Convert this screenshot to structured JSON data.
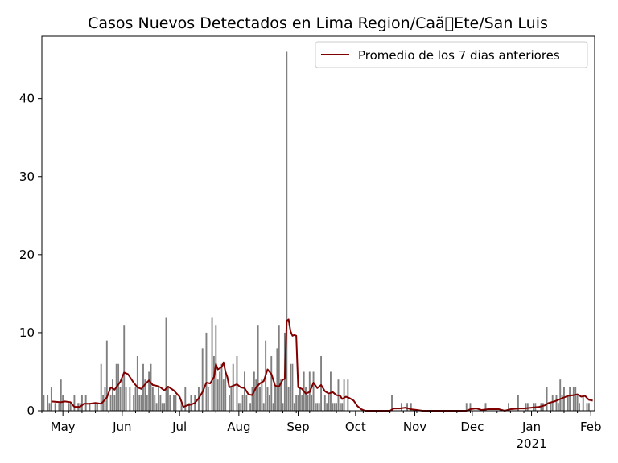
{
  "chart_data": {
    "type": "bar",
    "title": "Casos Nuevos Detectados en Lima Region/Caã\u0000Ete/San Luis",
    "xlabel": "",
    "ylabel": "",
    "ylim": [
      0,
      48
    ],
    "y_ticks": [
      0,
      10,
      20,
      30,
      40
    ],
    "x_ticks": [
      {
        "date": "2020-05-01",
        "label": "May",
        "sublabel": ""
      },
      {
        "date": "2020-06-01",
        "label": "Jun",
        "sublabel": ""
      },
      {
        "date": "2020-07-01",
        "label": "Jul",
        "sublabel": ""
      },
      {
        "date": "2020-08-01",
        "label": "Aug",
        "sublabel": ""
      },
      {
        "date": "2020-09-01",
        "label": "Sep",
        "sublabel": ""
      },
      {
        "date": "2020-10-01",
        "label": "Oct",
        "sublabel": ""
      },
      {
        "date": "2020-11-01",
        "label": "Nov",
        "sublabel": ""
      },
      {
        "date": "2020-12-01",
        "label": "Dec",
        "sublabel": ""
      },
      {
        "date": "2021-01-01",
        "label": "Jan",
        "sublabel": "2021"
      },
      {
        "date": "2021-02-01",
        "label": "Feb",
        "sublabel": ""
      }
    ],
    "x_range": [
      "2020-04-20",
      "2021-02-03"
    ],
    "legend": {
      "placement": "upper right",
      "line_label": "Promedio de los 7 dias anteriores"
    },
    "grid": false,
    "colors": {
      "bars": "#808080",
      "line": "#800000"
    },
    "series": [
      {
        "type": "bar",
        "points": [
          [
            "2020-04-21",
            2
          ],
          [
            "2020-04-23",
            2
          ],
          [
            "2020-04-24",
            1
          ],
          [
            "2020-04-25",
            3
          ],
          [
            "2020-04-27",
            1
          ],
          [
            "2020-04-29",
            1
          ],
          [
            "2020-04-30",
            4
          ],
          [
            "2020-05-01",
            2
          ],
          [
            "2020-05-04",
            1
          ],
          [
            "2020-05-05",
            1
          ],
          [
            "2020-05-07",
            2
          ],
          [
            "2020-05-09",
            1
          ],
          [
            "2020-05-10",
            1
          ],
          [
            "2020-05-11",
            2
          ],
          [
            "2020-05-13",
            2
          ],
          [
            "2020-05-15",
            1
          ],
          [
            "2020-05-18",
            1
          ],
          [
            "2020-05-19",
            1
          ],
          [
            "2020-05-21",
            6
          ],
          [
            "2020-05-22",
            2
          ],
          [
            "2020-05-23",
            3
          ],
          [
            "2020-05-24",
            9
          ],
          [
            "2020-05-26",
            2
          ],
          [
            "2020-05-27",
            4
          ],
          [
            "2020-05-28",
            2
          ],
          [
            "2020-05-29",
            6
          ],
          [
            "2020-05-30",
            6
          ],
          [
            "2020-05-31",
            3
          ],
          [
            "2020-06-01",
            4
          ],
          [
            "2020-06-02",
            11
          ],
          [
            "2020-06-03",
            3
          ],
          [
            "2020-06-05",
            3
          ],
          [
            "2020-06-07",
            2
          ],
          [
            "2020-06-08",
            3
          ],
          [
            "2020-06-09",
            7
          ],
          [
            "2020-06-10",
            2
          ],
          [
            "2020-06-11",
            2
          ],
          [
            "2020-06-12",
            6
          ],
          [
            "2020-06-13",
            4
          ],
          [
            "2020-06-14",
            2
          ],
          [
            "2020-06-15",
            5
          ],
          [
            "2020-06-16",
            6
          ],
          [
            "2020-06-17",
            3
          ],
          [
            "2020-06-18",
            2
          ],
          [
            "2020-06-19",
            1
          ],
          [
            "2020-06-20",
            3
          ],
          [
            "2020-06-21",
            2
          ],
          [
            "2020-06-22",
            1
          ],
          [
            "2020-06-23",
            1
          ],
          [
            "2020-06-24",
            12
          ],
          [
            "2020-06-25",
            3
          ],
          [
            "2020-06-26",
            2
          ],
          [
            "2020-06-28",
            2
          ],
          [
            "2020-06-29",
            2
          ],
          [
            "2020-07-02",
            1
          ],
          [
            "2020-07-04",
            3
          ],
          [
            "2020-07-06",
            1
          ],
          [
            "2020-07-07",
            2
          ],
          [
            "2020-07-09",
            2
          ],
          [
            "2020-07-11",
            3
          ],
          [
            "2020-07-13",
            8
          ],
          [
            "2020-07-15",
            10
          ],
          [
            "2020-07-16",
            3
          ],
          [
            "2020-07-18",
            12
          ],
          [
            "2020-07-19",
            7
          ],
          [
            "2020-07-20",
            11
          ],
          [
            "2020-07-21",
            4
          ],
          [
            "2020-07-22",
            5
          ],
          [
            "2020-07-23",
            6
          ],
          [
            "2020-07-24",
            4
          ],
          [
            "2020-07-25",
            5
          ],
          [
            "2020-07-27",
            2
          ],
          [
            "2020-07-28",
            3
          ],
          [
            "2020-07-29",
            6
          ],
          [
            "2020-07-31",
            7
          ],
          [
            "2020-08-01",
            1
          ],
          [
            "2020-08-02",
            1
          ],
          [
            "2020-08-03",
            2
          ],
          [
            "2020-08-04",
            5
          ],
          [
            "2020-08-05",
            2
          ],
          [
            "2020-08-07",
            1
          ],
          [
            "2020-08-08",
            3
          ],
          [
            "2020-08-09",
            5
          ],
          [
            "2020-08-10",
            4
          ],
          [
            "2020-08-11",
            11
          ],
          [
            "2020-08-12",
            3
          ],
          [
            "2020-08-13",
            4
          ],
          [
            "2020-08-14",
            1
          ],
          [
            "2020-08-15",
            9
          ],
          [
            "2020-08-16",
            3
          ],
          [
            "2020-08-17",
            2
          ],
          [
            "2020-08-18",
            7
          ],
          [
            "2020-08-19",
            1
          ],
          [
            "2020-08-20",
            3
          ],
          [
            "2020-08-21",
            8
          ],
          [
            "2020-08-22",
            11
          ],
          [
            "2020-08-23",
            4
          ],
          [
            "2020-08-24",
            1
          ],
          [
            "2020-08-25",
            10
          ],
          [
            "2020-08-26",
            46
          ],
          [
            "2020-08-27",
            3
          ],
          [
            "2020-08-28",
            6
          ],
          [
            "2020-08-29",
            6
          ],
          [
            "2020-08-30",
            1
          ],
          [
            "2020-08-31",
            2
          ],
          [
            "2020-09-01",
            2
          ],
          [
            "2020-09-02",
            3
          ],
          [
            "2020-09-03",
            2
          ],
          [
            "2020-09-04",
            5
          ],
          [
            "2020-09-05",
            3
          ],
          [
            "2020-09-06",
            2
          ],
          [
            "2020-09-07",
            5
          ],
          [
            "2020-09-08",
            2
          ],
          [
            "2020-09-09",
            5
          ],
          [
            "2020-09-10",
            1
          ],
          [
            "2020-09-11",
            1
          ],
          [
            "2020-09-12",
            1
          ],
          [
            "2020-09-13",
            7
          ],
          [
            "2020-09-15",
            2
          ],
          [
            "2020-09-16",
            1
          ],
          [
            "2020-09-17",
            2
          ],
          [
            "2020-09-18",
            5
          ],
          [
            "2020-09-19",
            1
          ],
          [
            "2020-09-20",
            1
          ],
          [
            "2020-09-21",
            1
          ],
          [
            "2020-09-22",
            4
          ],
          [
            "2020-09-23",
            1
          ],
          [
            "2020-09-24",
            1
          ],
          [
            "2020-09-25",
            4
          ],
          [
            "2020-09-27",
            4
          ],
          [
            "2020-10-20",
            2
          ],
          [
            "2020-10-25",
            1
          ],
          [
            "2020-10-28",
            1
          ],
          [
            "2020-10-30",
            1
          ],
          [
            "2020-11-28",
            1
          ],
          [
            "2020-11-30",
            1
          ],
          [
            "2020-12-08",
            1
          ],
          [
            "2020-12-20",
            1
          ],
          [
            "2020-12-25",
            2
          ],
          [
            "2020-12-29",
            1
          ],
          [
            "2020-12-30",
            1
          ],
          [
            "2021-01-02",
            1
          ],
          [
            "2021-01-03",
            1
          ],
          [
            "2021-01-06",
            1
          ],
          [
            "2021-01-07",
            1
          ],
          [
            "2021-01-09",
            3
          ],
          [
            "2021-01-11",
            1
          ],
          [
            "2021-01-12",
            2
          ],
          [
            "2021-01-14",
            2
          ],
          [
            "2021-01-15",
            1
          ],
          [
            "2021-01-16",
            4
          ],
          [
            "2021-01-17",
            2
          ],
          [
            "2021-01-18",
            3
          ],
          [
            "2021-01-20",
            2
          ],
          [
            "2021-01-21",
            3
          ],
          [
            "2021-01-23",
            3
          ],
          [
            "2021-01-24",
            3
          ],
          [
            "2021-01-25",
            2
          ],
          [
            "2021-01-26",
            1
          ],
          [
            "2021-01-28",
            2
          ],
          [
            "2021-01-30",
            1
          ],
          [
            "2021-01-31",
            1
          ]
        ]
      },
      {
        "name": "Promedio de los 7 dias anteriores",
        "type": "line",
        "points": [
          [
            "2020-04-25",
            1.2
          ],
          [
            "2020-04-30",
            1.1
          ],
          [
            "2020-05-02",
            1.2
          ],
          [
            "2020-05-05",
            1.1
          ],
          [
            "2020-05-07",
            0.5
          ],
          [
            "2020-05-10",
            0.5
          ],
          [
            "2020-05-12",
            0.9
          ],
          [
            "2020-05-15",
            0.9
          ],
          [
            "2020-05-18",
            1.0
          ],
          [
            "2020-05-21",
            0.9
          ],
          [
            "2020-05-24",
            1.7
          ],
          [
            "2020-05-26",
            3.0
          ],
          [
            "2020-05-28",
            2.7
          ],
          [
            "2020-05-31",
            3.7
          ],
          [
            "2020-06-02",
            4.9
          ],
          [
            "2020-06-04",
            4.7
          ],
          [
            "2020-06-07",
            3.6
          ],
          [
            "2020-06-09",
            3.0
          ],
          [
            "2020-06-11",
            2.8
          ],
          [
            "2020-06-13",
            3.4
          ],
          [
            "2020-06-15",
            3.9
          ],
          [
            "2020-06-17",
            3.3
          ],
          [
            "2020-06-19",
            3.2
          ],
          [
            "2020-06-21",
            3.0
          ],
          [
            "2020-06-23",
            2.6
          ],
          [
            "2020-06-25",
            3.1
          ],
          [
            "2020-06-28",
            2.6
          ],
          [
            "2020-07-01",
            1.8
          ],
          [
            "2020-07-03",
            0.5
          ],
          [
            "2020-07-05",
            0.7
          ],
          [
            "2020-07-07",
            0.8
          ],
          [
            "2020-07-09",
            1.0
          ],
          [
            "2020-07-11",
            1.6
          ],
          [
            "2020-07-13",
            2.4
          ],
          [
            "2020-07-15",
            3.6
          ],
          [
            "2020-07-17",
            3.5
          ],
          [
            "2020-07-19",
            4.3
          ],
          [
            "2020-07-20",
            6.0
          ],
          [
            "2020-07-21",
            5.3
          ],
          [
            "2020-07-23",
            5.6
          ],
          [
            "2020-07-24",
            6.2
          ],
          [
            "2020-07-25",
            5.0
          ],
          [
            "2020-07-26",
            4.3
          ],
          [
            "2020-07-27",
            3.0
          ],
          [
            "2020-07-29",
            3.2
          ],
          [
            "2020-07-31",
            3.4
          ],
          [
            "2020-08-02",
            3.0
          ],
          [
            "2020-08-04",
            2.9
          ],
          [
            "2020-08-06",
            2.1
          ],
          [
            "2020-08-08",
            2.0
          ],
          [
            "2020-08-10",
            3.0
          ],
          [
            "2020-08-12",
            3.5
          ],
          [
            "2020-08-14",
            3.8
          ],
          [
            "2020-08-16",
            5.3
          ],
          [
            "2020-08-18",
            4.7
          ],
          [
            "2020-08-20",
            3.2
          ],
          [
            "2020-08-22",
            3.1
          ],
          [
            "2020-08-24",
            4.0
          ],
          [
            "2020-08-25",
            4.1
          ],
          [
            "2020-08-26",
            11.5
          ],
          [
            "2020-08-27",
            11.7
          ],
          [
            "2020-08-28",
            10.2
          ],
          [
            "2020-08-29",
            9.6
          ],
          [
            "2020-08-30",
            9.7
          ],
          [
            "2020-08-31",
            9.6
          ],
          [
            "2020-09-01",
            3.0
          ],
          [
            "2020-09-03",
            2.8
          ],
          [
            "2020-09-05",
            2.2
          ],
          [
            "2020-09-07",
            2.4
          ],
          [
            "2020-09-09",
            3.6
          ],
          [
            "2020-09-11",
            2.9
          ],
          [
            "2020-09-13",
            3.3
          ],
          [
            "2020-09-15",
            2.5
          ],
          [
            "2020-09-17",
            2.2
          ],
          [
            "2020-09-19",
            2.4
          ],
          [
            "2020-09-21",
            2.0
          ],
          [
            "2020-09-23",
            1.9
          ],
          [
            "2020-09-24",
            1.5
          ],
          [
            "2020-09-26",
            1.8
          ],
          [
            "2020-09-28",
            1.6
          ],
          [
            "2020-09-30",
            1.3
          ],
          [
            "2020-10-02",
            0.6
          ],
          [
            "2020-10-04",
            0.2
          ],
          [
            "2020-10-06",
            0.0
          ],
          [
            "2020-10-19",
            0.0
          ],
          [
            "2020-10-21",
            0.3
          ],
          [
            "2020-10-24",
            0.3
          ],
          [
            "2020-10-27",
            0.4
          ],
          [
            "2020-10-30",
            0.2
          ],
          [
            "2020-11-02",
            0.1
          ],
          [
            "2020-11-05",
            0.0
          ],
          [
            "2020-11-28",
            0.0
          ],
          [
            "2020-11-30",
            0.2
          ],
          [
            "2020-12-03",
            0.3
          ],
          [
            "2020-12-06",
            0.1
          ],
          [
            "2020-12-09",
            0.2
          ],
          [
            "2020-12-15",
            0.2
          ],
          [
            "2020-12-18",
            0.0
          ],
          [
            "2020-12-21",
            0.2
          ],
          [
            "2020-12-26",
            0.3
          ],
          [
            "2020-12-28",
            0.3
          ],
          [
            "2021-01-01",
            0.4
          ],
          [
            "2021-01-05",
            0.5
          ],
          [
            "2021-01-08",
            0.7
          ],
          [
            "2021-01-10",
            1.0
          ],
          [
            "2021-01-13",
            1.2
          ],
          [
            "2021-01-15",
            1.4
          ],
          [
            "2021-01-18",
            1.7
          ],
          [
            "2021-01-20",
            1.9
          ],
          [
            "2021-01-23",
            2.0
          ],
          [
            "2021-01-25",
            2.1
          ],
          [
            "2021-01-27",
            1.8
          ],
          [
            "2021-01-29",
            1.9
          ],
          [
            "2021-01-31",
            1.4
          ],
          [
            "2021-02-02",
            1.3
          ]
        ]
      }
    ]
  }
}
